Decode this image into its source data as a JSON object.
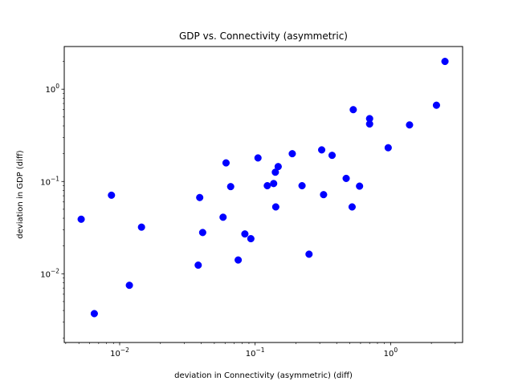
{
  "chart_data": {
    "type": "scatter",
    "title": "GDP vs. Connectivity (asymmetric)",
    "xlabel": "deviation in Connectivity (asymmetric) (diff)",
    "ylabel": "deviation in GDP (diff)",
    "xscale": "log",
    "yscale": "log",
    "xlim": [
      0.0039,
      3.4
    ],
    "ylim": [
      0.0018,
      2.9
    ],
    "grid": false,
    "marker_color": "#0000ff",
    "x_ticks": [
      {
        "value": 0.01,
        "base": "10",
        "exp": "−2"
      },
      {
        "value": 0.1,
        "base": "10",
        "exp": "−1"
      },
      {
        "value": 1,
        "base": "10",
        "exp": "0"
      }
    ],
    "y_ticks": [
      {
        "value": 0.01,
        "base": "10",
        "exp": "−2"
      },
      {
        "value": 0.1,
        "base": "10",
        "exp": "−1"
      },
      {
        "value": 1,
        "base": "10",
        "exp": "0"
      }
    ],
    "points": [
      {
        "x": 0.0052,
        "y": 0.039
      },
      {
        "x": 0.0065,
        "y": 0.0037
      },
      {
        "x": 0.0087,
        "y": 0.071
      },
      {
        "x": 0.0118,
        "y": 0.0075
      },
      {
        "x": 0.0145,
        "y": 0.032
      },
      {
        "x": 0.038,
        "y": 0.0124
      },
      {
        "x": 0.039,
        "y": 0.067
      },
      {
        "x": 0.041,
        "y": 0.028
      },
      {
        "x": 0.058,
        "y": 0.041
      },
      {
        "x": 0.061,
        "y": 0.159
      },
      {
        "x": 0.066,
        "y": 0.088
      },
      {
        "x": 0.075,
        "y": 0.0141
      },
      {
        "x": 0.084,
        "y": 0.027
      },
      {
        "x": 0.093,
        "y": 0.024
      },
      {
        "x": 0.105,
        "y": 0.18
      },
      {
        "x": 0.123,
        "y": 0.09
      },
      {
        "x": 0.137,
        "y": 0.095
      },
      {
        "x": 0.141,
        "y": 0.126
      },
      {
        "x": 0.142,
        "y": 0.053
      },
      {
        "x": 0.148,
        "y": 0.145
      },
      {
        "x": 0.188,
        "y": 0.2
      },
      {
        "x": 0.222,
        "y": 0.09
      },
      {
        "x": 0.25,
        "y": 0.0163
      },
      {
        "x": 0.31,
        "y": 0.22
      },
      {
        "x": 0.32,
        "y": 0.072
      },
      {
        "x": 0.37,
        "y": 0.192
      },
      {
        "x": 0.47,
        "y": 0.108
      },
      {
        "x": 0.52,
        "y": 0.053
      },
      {
        "x": 0.53,
        "y": 0.6
      },
      {
        "x": 0.59,
        "y": 0.089
      },
      {
        "x": 0.7,
        "y": 0.48
      },
      {
        "x": 0.7,
        "y": 0.42
      },
      {
        "x": 0.96,
        "y": 0.232
      },
      {
        "x": 1.38,
        "y": 0.41
      },
      {
        "x": 2.18,
        "y": 0.67
      },
      {
        "x": 2.52,
        "y": 2.0
      }
    ]
  }
}
